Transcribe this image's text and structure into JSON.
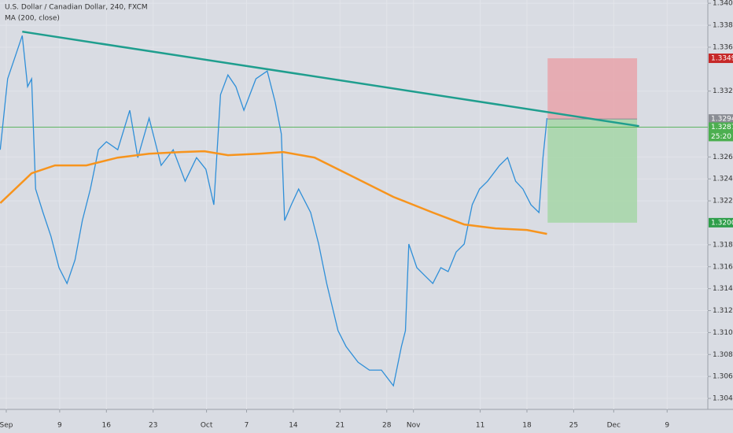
{
  "chart_data": {
    "type": "line",
    "title": "U.S. Dollar / Canadian Dollar, 240, FXCM",
    "xlim": [
      -0.94,
      105.1
    ],
    "ylim": [
      1.303,
      1.3403
    ],
    "grid": true,
    "xticks": [
      {
        "value": 0,
        "label": "Sep"
      },
      {
        "value": 8,
        "label": "9"
      },
      {
        "value": 15,
        "label": "16"
      },
      {
        "value": 22,
        "label": "23"
      },
      {
        "value": 30,
        "label": "Oct"
      },
      {
        "value": 36,
        "label": "7"
      },
      {
        "value": 43,
        "label": "14"
      },
      {
        "value": 50,
        "label": "21"
      },
      {
        "value": 57,
        "label": "28"
      },
      {
        "value": 61,
        "label": "Nov"
      },
      {
        "value": 71,
        "label": "11"
      },
      {
        "value": 78,
        "label": "18"
      },
      {
        "value": 85,
        "label": "25"
      },
      {
        "value": 91,
        "label": "Dec"
      },
      {
        "value": 99,
        "label": "9"
      }
    ],
    "yticks": [
      {
        "value": 1.304,
        "label": "1.30400"
      },
      {
        "value": 1.306,
        "label": "1.30600"
      },
      {
        "value": 1.308,
        "label": "1.30800"
      },
      {
        "value": 1.31,
        "label": "1.31000"
      },
      {
        "value": 1.312,
        "label": "1.31200"
      },
      {
        "value": 1.314,
        "label": "1.31400"
      },
      {
        "value": 1.316,
        "label": "1.31600"
      },
      {
        "value": 1.318,
        "label": "1.31800"
      },
      {
        "value": 1.322,
        "label": "1.32200"
      },
      {
        "value": 1.324,
        "label": "1.32400"
      },
      {
        "value": 1.326,
        "label": "1.32600"
      },
      {
        "value": 1.332,
        "label": "1.33200"
      },
      {
        "value": 1.336,
        "label": "1.33600"
      },
      {
        "value": 1.338,
        "label": "1.33800"
      },
      {
        "value": 1.34,
        "label": "1.34000"
      }
    ],
    "series": [
      {
        "color": "#2f8fd8",
        "x": [
          -0.9,
          0.2,
          1.4,
          2.4,
          3.2,
          3.8,
          4.4,
          5.5,
          6.7,
          7.9,
          9.1,
          10.3,
          11.4,
          12.6,
          13.8,
          15.0,
          16.7,
          18.5,
          19.7,
          21.4,
          23.2,
          25.0,
          26.8,
          28.5,
          29.9,
          31.1,
          32.1,
          33.2,
          34.4,
          35.6,
          37.4,
          39.1,
          40.3,
          41.2,
          41.7,
          42.7,
          43.8,
          45.6,
          46.8,
          48.0,
          49.7,
          50.9,
          52.7,
          54.4,
          56.2,
          58.0,
          59.2,
          59.8,
          60.3,
          61.5,
          62.7,
          63.9,
          65.1,
          66.2,
          67.4,
          68.6,
          69.8,
          70.9,
          72.1,
          73.9,
          75.1,
          76.3,
          77.4,
          78.6,
          79.8,
          80.4,
          81.0
        ],
        "values": [
          1.32666,
          1.33312,
          1.33527,
          1.33706,
          1.3324,
          1.33312,
          1.32308,
          1.32093,
          1.31877,
          1.31591,
          1.31447,
          1.31662,
          1.32021,
          1.32308,
          1.32666,
          1.32738,
          1.32666,
          1.33025,
          1.32594,
          1.32953,
          1.32523,
          1.32666,
          1.32379,
          1.32594,
          1.32487,
          1.32164,
          1.33168,
          1.33347,
          1.3324,
          1.33025,
          1.33312,
          1.33383,
          1.33096,
          1.3281,
          1.32021,
          1.32164,
          1.32308,
          1.32093,
          1.31806,
          1.31447,
          1.31017,
          1.30873,
          1.3073,
          1.30658,
          1.30658,
          1.30515,
          1.30873,
          1.31017,
          1.31806,
          1.31591,
          1.31519,
          1.31447,
          1.31591,
          1.31555,
          1.31734,
          1.31806,
          1.32164,
          1.32308,
          1.32379,
          1.32523,
          1.32594,
          1.32379,
          1.32308,
          1.32164,
          1.32093,
          1.32594,
          1.32953
        ]
      },
      {
        "name": "MA (200, close)",
        "color": "#f7941d",
        "x": [
          -0.9,
          3.8,
          7.3,
          12.0,
          16.7,
          21.4,
          26.2,
          29.7,
          33.2,
          37.9,
          41.5,
          46.2,
          52.1,
          58.0,
          63.9,
          68.6,
          73.3,
          78.0,
          81.0
        ],
        "values": [
          1.32179,
          1.32451,
          1.32523,
          1.32523,
          1.32594,
          1.3263,
          1.32645,
          1.32652,
          1.32616,
          1.3263,
          1.32645,
          1.32594,
          1.32415,
          1.32236,
          1.32093,
          1.31985,
          1.31949,
          1.31935,
          1.31899
        ]
      }
    ],
    "trendline": {
      "color": "#1f9e8e",
      "x": [
        2.4,
        94.8
      ],
      "values": [
        1.33742,
        1.32881
      ]
    },
    "position": {
      "x": [
        81.1,
        94.5
      ],
      "entry": 1.32946,
      "stop": 1.33499,
      "target": 1.32001
    },
    "current_price": 1.32872,
    "countdown": "25:20",
    "price_labels": [
      {
        "value": 1.33499,
        "color": "#c62828"
      },
      {
        "value": 1.32946,
        "color": "#8a8d94"
      },
      {
        "value": 1.32001,
        "color": "#2e9e4a"
      }
    ]
  }
}
